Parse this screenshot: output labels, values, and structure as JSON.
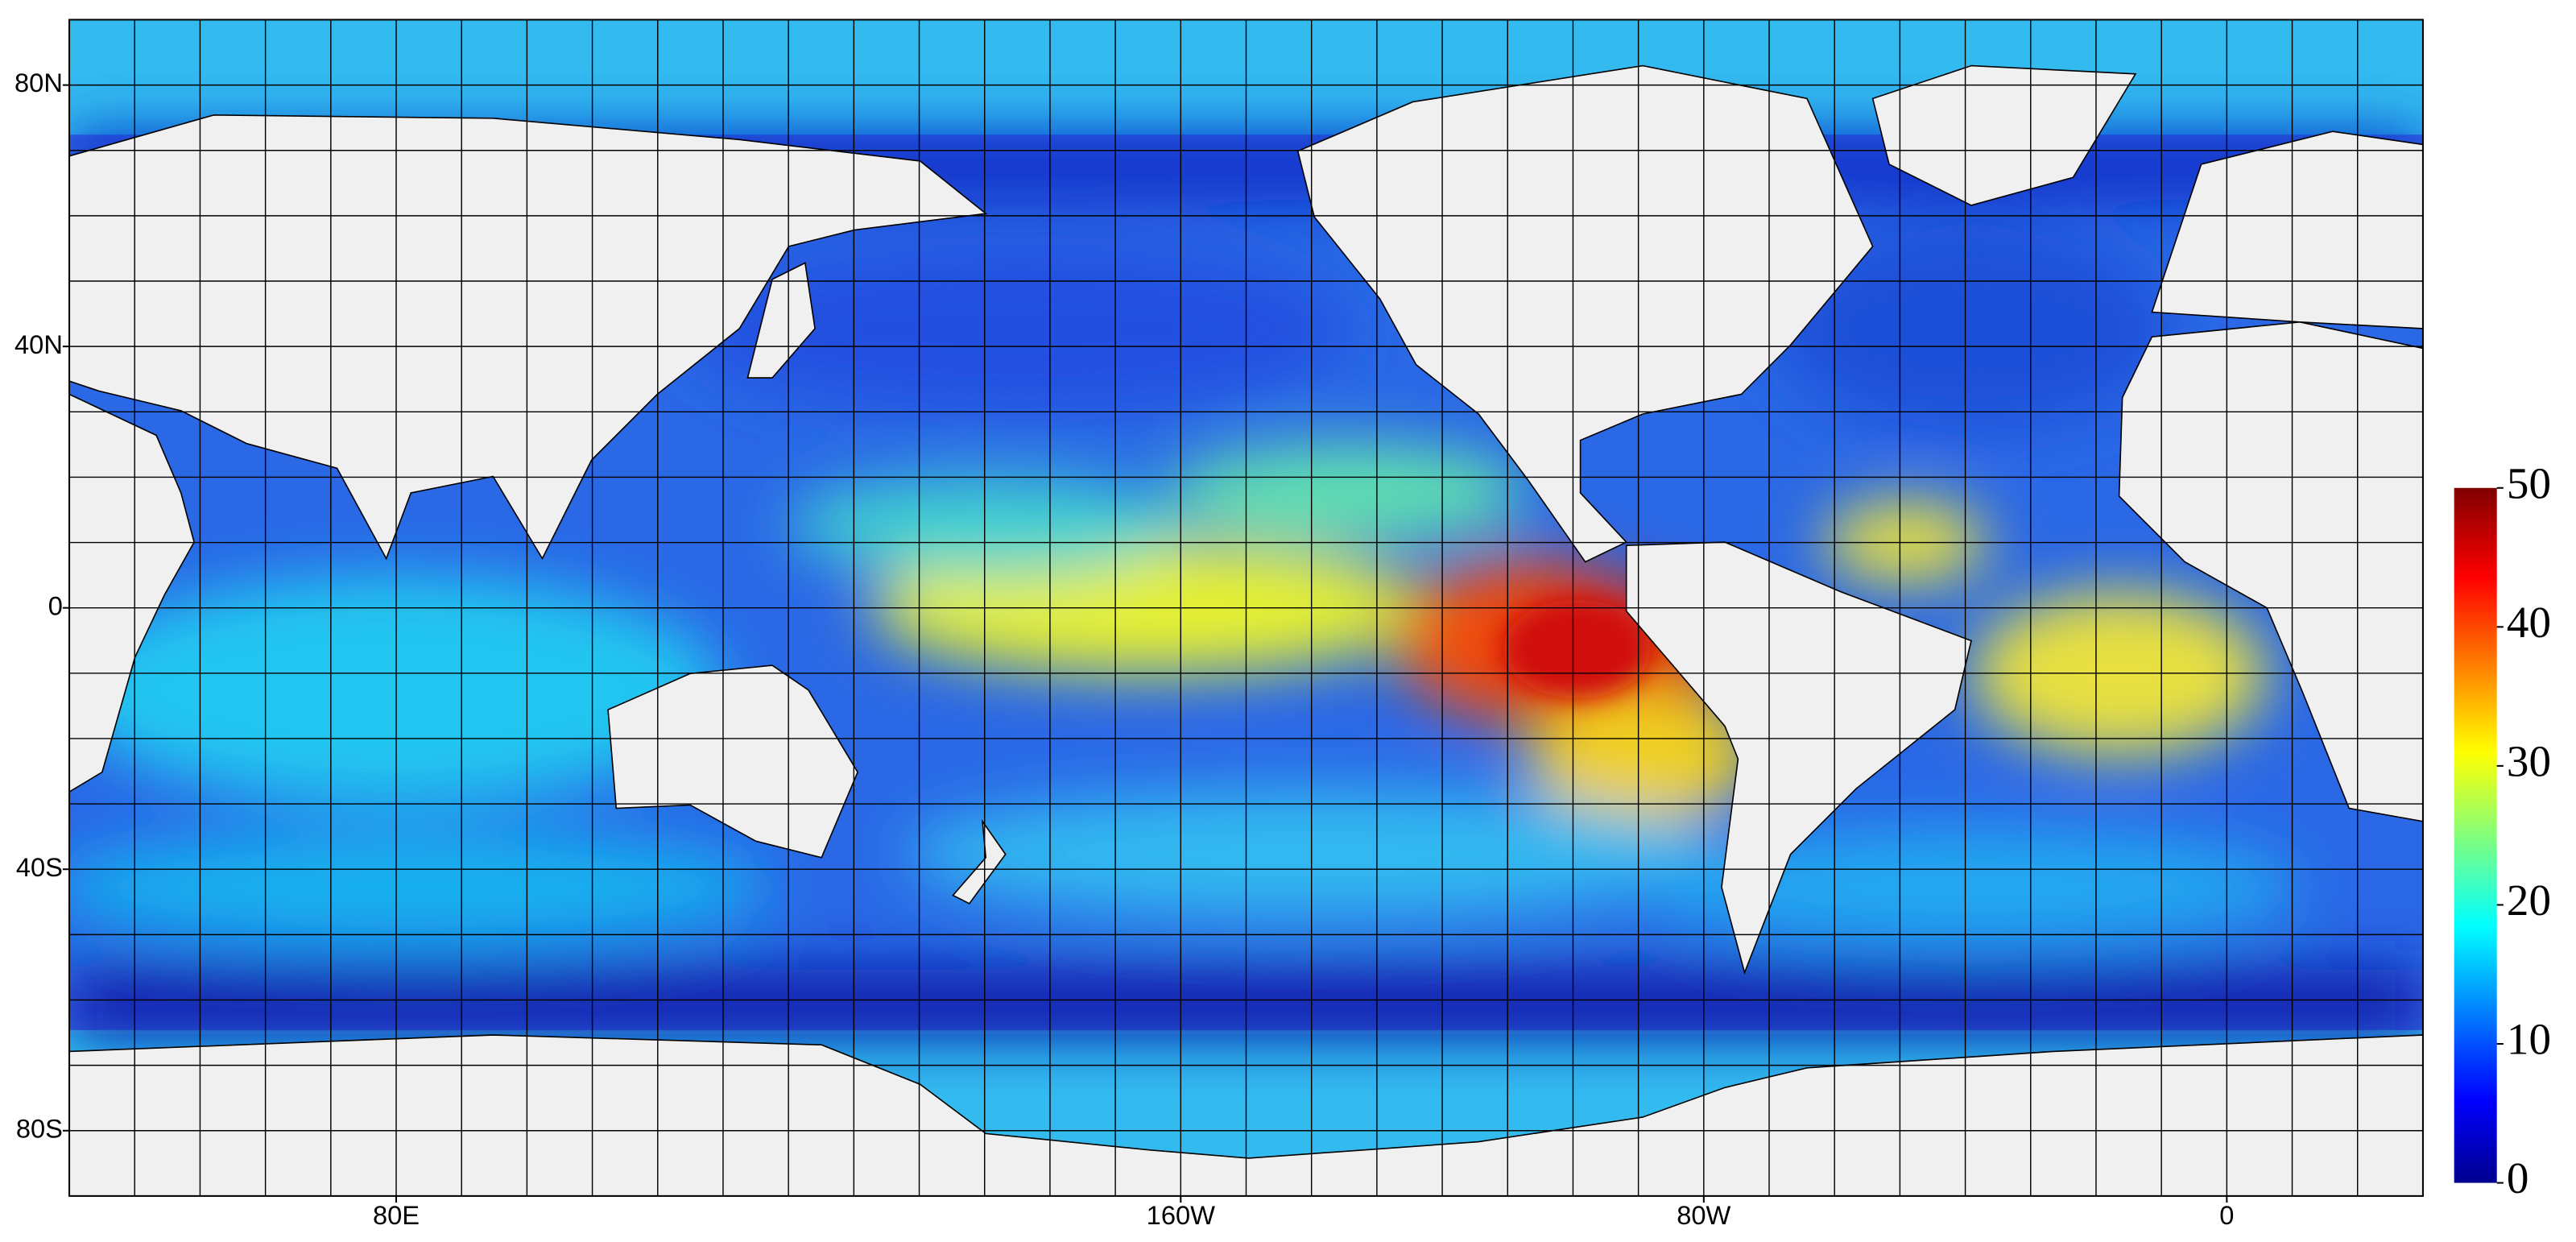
{
  "map": {
    "xlim": [
      30,
      390
    ],
    "ylim": [
      -90,
      90
    ],
    "lat_ticks": [
      {
        "value": 80,
        "label": "80N"
      },
      {
        "value": 40,
        "label": "40N"
      },
      {
        "value": 0,
        "label": "0"
      },
      {
        "value": -40,
        "label": "40S"
      },
      {
        "value": -80,
        "label": "80S"
      }
    ],
    "lon_ticks": [
      {
        "value": 80,
        "label": "80E"
      },
      {
        "value": 200,
        "label": "160W"
      },
      {
        "value": 280,
        "label": "80W"
      },
      {
        "value": 360,
        "label": "0"
      }
    ],
    "colorbar": {
      "lim": [
        0,
        50
      ],
      "ticks": [
        0,
        10,
        20,
        30,
        40,
        50
      ]
    }
  }
}
